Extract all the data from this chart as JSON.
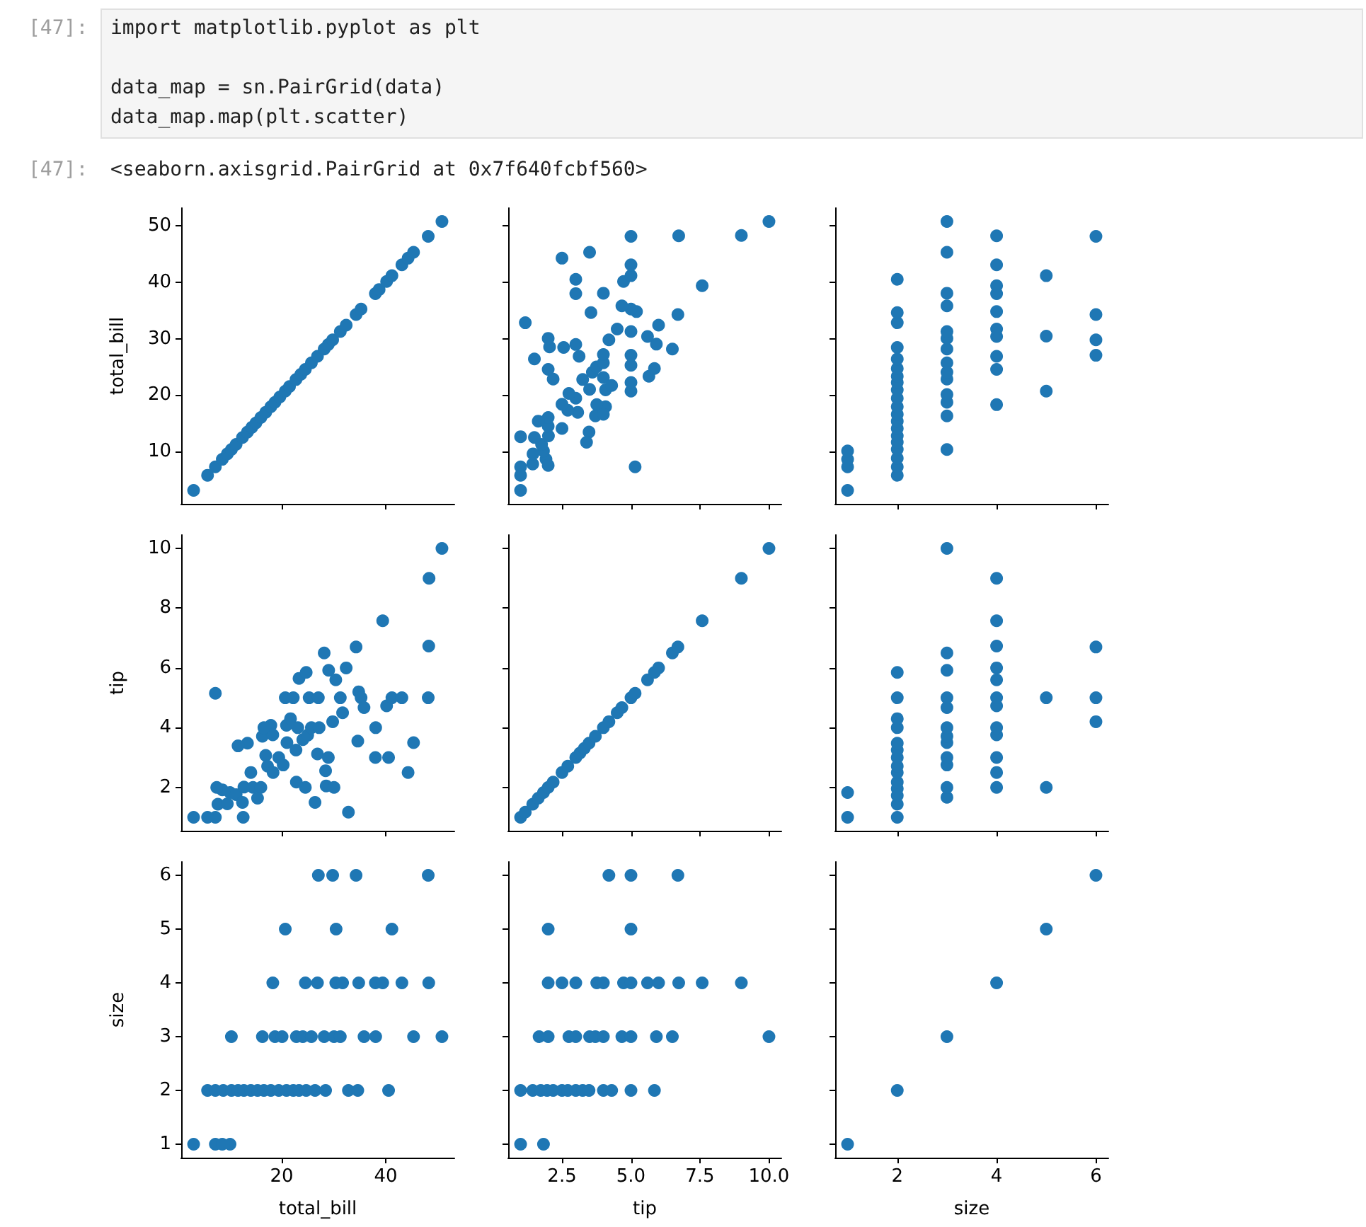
{
  "chart_data": [
    {
      "type": "scatter",
      "ylabel": "total_bill",
      "annotations": [
        "[47]:",
        "import matplotlib.pyplot as plt",
        "data_map = sn.PairGrid(data)",
        "data_map.map(plt.scatter)",
        "[47]:",
        "<seaborn.axisgrid.PairGrid at 0x7f640fcbf560>"
      ],
      "color": "#1f77b4",
      "marker": "circle",
      "tick_labels": "y",
      "xlim": [
        0.68,
        53.2
      ],
      "xticks": [
        20,
        40
      ],
      "ylim": [
        0.68,
        53.2
      ],
      "yticks": [
        10,
        20,
        30,
        40,
        50
      ],
      "x": [
        3.07,
        5.75,
        7.25,
        8.58,
        9.55,
        10.33,
        11.24,
        12.46,
        13.42,
        14.26,
        15.04,
        16.0,
        16.93,
        17.92,
        18.71,
        19.65,
        20.69,
        21.5,
        22.75,
        23.68,
        24.55,
        25.71,
        26.88,
        28.17,
        28.97,
        29.8,
        31.27,
        32.4,
        34.3,
        35.26,
        38.01,
        38.73,
        40.17,
        41.19,
        43.11,
        44.3,
        45.35,
        48.17,
        50.81
      ],
      "values": [
        3.07,
        5.75,
        7.25,
        8.58,
        9.55,
        10.33,
        11.24,
        12.46,
        13.42,
        14.26,
        15.04,
        16.0,
        16.93,
        17.92,
        18.71,
        19.65,
        20.69,
        21.5,
        22.75,
        23.68,
        24.55,
        25.71,
        26.88,
        28.17,
        28.97,
        29.8,
        31.27,
        32.4,
        34.3,
        35.26,
        38.01,
        38.73,
        40.17,
        41.19,
        43.11,
        44.3,
        45.35,
        48.17,
        50.81
      ]
    },
    {
      "type": "scatter",
      "color": "#1f77b4",
      "marker": "circle",
      "tick_labels": false,
      "xlim": [
        0.55,
        10.45
      ],
      "xticks": [
        2.5,
        5,
        7.5,
        10
      ],
      "ylim": [
        0.68,
        53.2
      ],
      "yticks": [
        10,
        20,
        30,
        40,
        50
      ],
      "x": [
        1.0,
        1.0,
        1.92,
        1.83,
        1.0,
        2.0,
        1.44,
        1.45,
        1.76,
        1.5,
        1.0,
        2.01,
        3.48,
        2.5,
        2.0,
        2.0,
        3.71,
        3.07,
        2.71,
        4.08,
        3.76,
        2.5,
        3.0,
        2.75,
        5.0,
        4.08,
        3.5,
        5.0,
        3.25,
        4.0,
        5.65,
        3.6,
        2.0,
        5.85,
        3.75,
        5.0,
        4.0,
        1.5,
        3.12,
        5.0,
        4.0,
        6.5,
        2.56,
        2.05,
        3.0,
        5.92,
        4.2,
        2.0,
        5.6,
        5.0,
        4.5,
        6.0,
        1.17,
        6.7,
        3.55,
        5.2,
        5.0,
        4.67,
        3.0,
        4.0,
        7.58,
        4.73,
        3.0,
        5.0,
        5.0,
        2.5,
        3.5,
        5.0,
        6.73,
        9.0,
        10.0,
        1.64,
        3.39,
        4.3,
        2.18,
        5.15,
        4.0
      ],
      "values": [
        3.07,
        7.25,
        8.58,
        10.07,
        5.75,
        7.51,
        7.74,
        9.55,
        11.24,
        12.46,
        12.6,
        12.74,
        13.42,
        14.07,
        14.48,
        16.0,
        16.29,
        16.93,
        17.29,
        17.92,
        18.29,
        18.35,
        19.44,
        20.29,
        20.69,
        20.92,
        21.01,
        22.23,
        22.75,
        23.1,
        23.33,
        24.06,
        24.55,
        24.71,
        25.0,
        25.28,
        25.71,
        26.41,
        26.88,
        27.05,
        27.2,
        28.17,
        28.44,
        28.55,
        28.97,
        29.03,
        29.8,
        30.06,
        30.4,
        31.27,
        31.71,
        32.4,
        32.83,
        34.3,
        34.63,
        34.81,
        35.26,
        35.83,
        38.01,
        38.07,
        39.42,
        40.17,
        40.55,
        41.19,
        43.11,
        44.3,
        45.35,
        48.17,
        48.27,
        48.33,
        50.81,
        15.36,
        11.61,
        21.7,
        22.82,
        7.25,
        16.58
      ]
    },
    {
      "type": "scatter",
      "color": "#1f77b4",
      "marker": "circle",
      "tick_labels": false,
      "xlim": [
        0.75,
        6.25
      ],
      "xticks": [
        2,
        4,
        6
      ],
      "ylim": [
        0.68,
        53.2
      ],
      "yticks": [
        10,
        20,
        30,
        40,
        50
      ],
      "x": [
        1,
        1,
        1,
        1,
        2,
        2,
        2,
        2,
        2,
        2,
        2,
        2,
        2,
        2,
        2,
        2,
        2,
        2,
        2,
        2,
        2,
        2,
        2,
        2,
        3,
        3,
        3,
        3,
        3,
        3,
        3,
        3,
        3,
        3,
        3,
        3,
        3,
        3,
        4,
        4,
        4,
        4,
        4,
        4,
        4,
        4,
        4,
        4,
        5,
        5,
        5,
        6,
        6,
        6,
        6
      ],
      "values": [
        3.07,
        7.25,
        8.58,
        10.07,
        5.75,
        7.25,
        8.77,
        10.34,
        11.61,
        12.74,
        14.07,
        15.36,
        16.58,
        17.92,
        19.44,
        20.92,
        22.23,
        23.33,
        24.71,
        26.41,
        28.44,
        32.83,
        34.63,
        40.55,
        10.33,
        16.29,
        18.71,
        20.08,
        22.82,
        24.06,
        25.71,
        28.17,
        30.06,
        31.27,
        35.83,
        38.07,
        45.35,
        50.81,
        18.29,
        24.55,
        26.88,
        30.4,
        31.71,
        34.81,
        38.01,
        39.42,
        43.11,
        48.27,
        20.69,
        30.46,
        41.19,
        27.05,
        29.8,
        34.3,
        48.17
      ]
    },
    {
      "type": "scatter",
      "ylabel": "tip",
      "color": "#1f77b4",
      "marker": "circle",
      "tick_labels": "y",
      "xlim": [
        0.68,
        53.2
      ],
      "xticks": [
        20,
        40
      ],
      "ylim": [
        0.55,
        10.45
      ],
      "yticks": [
        2,
        4,
        6,
        8,
        10
      ],
      "x": [
        3.07,
        7.25,
        8.58,
        10.07,
        5.75,
        7.51,
        7.74,
        9.55,
        11.24,
        12.46,
        12.6,
        12.74,
        13.42,
        14.07,
        14.48,
        16.0,
        16.29,
        16.93,
        17.29,
        17.92,
        18.29,
        18.35,
        19.44,
        20.29,
        20.69,
        20.92,
        21.01,
        22.23,
        22.75,
        23.1,
        23.33,
        24.06,
        24.55,
        24.71,
        25.0,
        25.28,
        25.71,
        26.41,
        26.88,
        27.05,
        27.2,
        28.17,
        28.44,
        28.55,
        28.97,
        29.03,
        29.8,
        30.06,
        30.4,
        31.27,
        31.71,
        32.4,
        32.83,
        34.3,
        34.63,
        34.81,
        35.26,
        35.83,
        38.01,
        38.07,
        39.42,
        40.17,
        40.55,
        41.19,
        43.11,
        44.3,
        45.35,
        48.17,
        48.27,
        48.33,
        50.81,
        15.36,
        11.61,
        21.7,
        22.82,
        7.25,
        16.58
      ],
      "values": [
        1.0,
        1.0,
        1.92,
        1.83,
        1.0,
        2.0,
        1.44,
        1.45,
        1.76,
        1.5,
        1.0,
        2.01,
        3.48,
        2.5,
        2.0,
        2.0,
        3.71,
        3.07,
        2.71,
        4.08,
        3.76,
        2.5,
        3.0,
        2.75,
        5.0,
        4.08,
        3.5,
        5.0,
        3.25,
        4.0,
        5.65,
        3.6,
        2.0,
        5.85,
        3.75,
        5.0,
        4.0,
        1.5,
        3.12,
        5.0,
        4.0,
        6.5,
        2.56,
        2.05,
        3.0,
        5.92,
        4.2,
        2.0,
        5.6,
        5.0,
        4.5,
        6.0,
        1.17,
        6.7,
        3.55,
        5.2,
        5.0,
        4.67,
        3.0,
        4.0,
        7.58,
        4.73,
        3.0,
        5.0,
        5.0,
        2.5,
        3.5,
        5.0,
        6.73,
        9.0,
        10.0,
        1.64,
        3.39,
        4.3,
        2.18,
        5.15,
        4.0
      ]
    },
    {
      "type": "scatter",
      "color": "#1f77b4",
      "marker": "circle",
      "tick_labels": false,
      "xlim": [
        0.55,
        10.45
      ],
      "xticks": [
        2.5,
        5,
        7.5,
        10
      ],
      "ylim": [
        0.55,
        10.45
      ],
      "yticks": [
        2,
        4,
        6,
        8,
        10
      ],
      "x": [
        1.0,
        1.17,
        1.44,
        1.64,
        1.83,
        2.0,
        2.18,
        2.5,
        2.71,
        3.0,
        3.15,
        3.31,
        3.48,
        3.71,
        4.0,
        4.2,
        4.5,
        4.67,
        5.0,
        5.15,
        5.6,
        5.85,
        6.0,
        6.5,
        6.7,
        7.58,
        9.0,
        10.0
      ],
      "values": [
        1.0,
        1.17,
        1.44,
        1.64,
        1.83,
        2.0,
        2.18,
        2.5,
        2.71,
        3.0,
        3.15,
        3.31,
        3.48,
        3.71,
        4.0,
        4.2,
        4.5,
        4.67,
        5.0,
        5.15,
        5.6,
        5.85,
        6.0,
        6.5,
        6.7,
        7.58,
        9.0,
        10.0
      ]
    },
    {
      "type": "scatter",
      "color": "#1f77b4",
      "marker": "circle",
      "tick_labels": false,
      "xlim": [
        0.75,
        6.25
      ],
      "xticks": [
        2,
        4,
        6
      ],
      "ylim": [
        0.55,
        10.45
      ],
      "yticks": [
        2,
        4,
        6,
        8,
        10
      ],
      "x": [
        1,
        1,
        2,
        2,
        2,
        2,
        2,
        2,
        2,
        2,
        2,
        2,
        2,
        2,
        2,
        2,
        3,
        3,
        3,
        3,
        3,
        3,
        3,
        3,
        3,
        3,
        3,
        3,
        4,
        4,
        4,
        4,
        4,
        4,
        4,
        4,
        4,
        4,
        4,
        4,
        5,
        5,
        6,
        6,
        6
      ],
      "values": [
        1.0,
        1.83,
        1.0,
        1.44,
        1.73,
        1.96,
        2.18,
        2.5,
        2.71,
        3.0,
        3.25,
        3.48,
        4.0,
        4.3,
        5.0,
        5.85,
        1.67,
        2.0,
        2.75,
        3.0,
        3.5,
        3.71,
        4.0,
        4.67,
        5.0,
        5.92,
        6.5,
        10.0,
        2.0,
        2.5,
        3.0,
        3.76,
        4.0,
        4.73,
        5.0,
        5.6,
        6.0,
        6.73,
        7.58,
        9.0,
        2.0,
        5.0,
        4.2,
        5.0,
        6.7
      ]
    },
    {
      "type": "scatter",
      "xlabel": "total_bill",
      "ylabel": "size",
      "color": "#1f77b4",
      "marker": "circle",
      "xlim": [
        0.68,
        53.2
      ],
      "xticks": [
        20,
        40
      ],
      "ylim": [
        0.75,
        6.25
      ],
      "yticks": [
        1,
        2,
        3,
        4,
        5,
        6
      ],
      "x": [
        3.07,
        7.25,
        8.58,
        10.07,
        5.75,
        7.25,
        8.77,
        10.34,
        11.61,
        12.74,
        14.07,
        15.36,
        16.58,
        17.92,
        19.44,
        20.92,
        22.23,
        23.33,
        24.71,
        26.41,
        28.44,
        32.83,
        34.63,
        40.55,
        10.33,
        16.29,
        18.71,
        20.08,
        22.82,
        24.06,
        25.71,
        28.17,
        30.06,
        31.27,
        35.83,
        38.07,
        45.35,
        50.81,
        18.29,
        24.55,
        26.88,
        30.4,
        31.71,
        34.81,
        38.01,
        39.42,
        43.11,
        48.27,
        20.69,
        30.46,
        41.19,
        27.05,
        29.8,
        34.3,
        48.17
      ],
      "values": [
        1,
        1,
        1,
        1,
        2,
        2,
        2,
        2,
        2,
        2,
        2,
        2,
        2,
        2,
        2,
        2,
        2,
        2,
        2,
        2,
        2,
        2,
        2,
        2,
        3,
        3,
        3,
        3,
        3,
        3,
        3,
        3,
        3,
        3,
        3,
        3,
        3,
        3,
        4,
        4,
        4,
        4,
        4,
        4,
        4,
        4,
        4,
        4,
        5,
        5,
        5,
        6,
        6,
        6,
        6
      ]
    },
    {
      "type": "scatter",
      "xlabel": "tip",
      "color": "#1f77b4",
      "marker": "circle",
      "tick_labels": "x",
      "xlim": [
        0.55,
        10.45
      ],
      "xticks": [
        {
          "value": 2.5,
          "label": "2.5"
        },
        {
          "value": 5,
          "label": "5.0"
        },
        {
          "value": 7.5,
          "label": "7.5"
        },
        {
          "value": 10,
          "label": "10.0"
        }
      ],
      "ylim": [
        0.75,
        6.25
      ],
      "yticks": [
        1,
        2,
        3,
        4,
        5,
        6
      ],
      "x": [
        1.0,
        1.83,
        1.0,
        1.44,
        1.73,
        1.96,
        2.18,
        2.5,
        2.71,
        3.0,
        3.25,
        3.48,
        4.0,
        4.3,
        5.0,
        5.85,
        1.67,
        2.0,
        2.75,
        3.0,
        3.5,
        3.71,
        4.0,
        4.67,
        5.0,
        5.92,
        6.5,
        10.0,
        2.0,
        2.5,
        3.0,
        3.76,
        4.0,
        4.73,
        5.0,
        5.6,
        6.0,
        6.73,
        7.58,
        9.0,
        2.0,
        5.0,
        4.2,
        5.0,
        6.7
      ],
      "values": [
        1,
        1,
        2,
        2,
        2,
        2,
        2,
        2,
        2,
        2,
        2,
        2,
        2,
        2,
        2,
        2,
        3,
        3,
        3,
        3,
        3,
        3,
        3,
        3,
        3,
        3,
        3,
        3,
        4,
        4,
        4,
        4,
        4,
        4,
        4,
        4,
        4,
        4,
        4,
        4,
        5,
        5,
        6,
        6,
        6
      ]
    },
    {
      "type": "scatter",
      "xlabel": "size",
      "color": "#1f77b4",
      "marker": "circle",
      "tick_labels": "x",
      "xlim": [
        0.75,
        6.25
      ],
      "xticks": [
        2,
        4,
        6
      ],
      "ylim": [
        0.75,
        6.25
      ],
      "yticks": [
        1,
        2,
        3,
        4,
        5,
        6
      ],
      "x": [
        1,
        2,
        3,
        4,
        5,
        6
      ],
      "values": [
        1,
        2,
        3,
        4,
        5,
        6
      ]
    }
  ]
}
